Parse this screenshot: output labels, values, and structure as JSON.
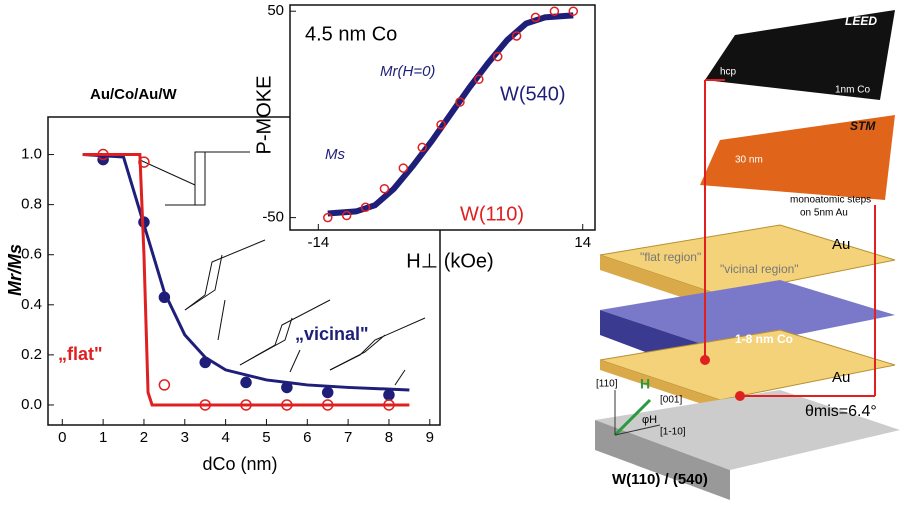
{
  "chart_data": [
    {
      "type": "line",
      "title": "Au/Co/Au/W",
      "x_label": "dCo (nm)",
      "y_label": "Mr/Ms",
      "xlim": [
        -0.35,
        9.25
      ],
      "ylim": [
        -0.08,
        1.15
      ],
      "xticks": [
        0,
        1,
        2,
        3,
        4,
        5,
        6,
        7,
        8,
        9
      ],
      "yticks": [
        {
          "value": 0,
          "label": "0.0"
        },
        {
          "value": 0.2,
          "label": "0.2"
        },
        {
          "value": 0.4,
          "label": "0.4"
        },
        {
          "value": 0.6,
          "label": "0.6"
        },
        {
          "value": 0.8,
          "label": "0.8"
        },
        {
          "value": 1,
          "label": "1.0"
        }
      ],
      "series": [
        {
          "name": "„vicinal\"",
          "color": "#1f1f7a",
          "marker": "filled",
          "x": [
            1,
            2,
            2.5,
            3.5,
            4.5,
            5.5,
            6.5,
            8
          ],
          "values": [
            0.98,
            0.73,
            0.43,
            0.17,
            0.09,
            0.07,
            0.05,
            0.04
          ]
        },
        {
          "name": "„flat\"",
          "color": "#e02020",
          "marker": "open",
          "x": [
            1,
            2,
            2.5,
            3.5,
            4.5,
            5.5,
            6.5,
            8
          ],
          "values": [
            1.0,
            0.97,
            0.08,
            0,
            0,
            0,
            0,
            0
          ]
        },
        {
          "color": "#1f1f7a",
          "x": [
            0.5,
            1.5,
            2,
            2.5,
            3,
            3.5,
            4,
            5,
            6,
            7,
            8.5
          ],
          "values": [
            1.0,
            0.99,
            0.72,
            0.45,
            0.28,
            0.19,
            0.14,
            0.1,
            0.08,
            0.07,
            0.06
          ]
        },
        {
          "color": "#e02020",
          "x": [
            0.5,
            1.9,
            2.0,
            2.1,
            2.2,
            8.5
          ],
          "values": [
            1.0,
            1.0,
            0.6,
            0.05,
            0.0,
            0.0
          ]
        }
      ]
    },
    {
      "type": "line",
      "x_label": "H⊥ (kOe)",
      "y_label": "P-MOKE",
      "annotation": "4.5 nm Co",
      "mr_label": "Mr(H=0)",
      "ms_label": "Ms",
      "xlim": [
        -17,
        15.3
      ],
      "ylim": [
        -56,
        53
      ],
      "xticks": [
        -14,
        14
      ],
      "yticks": [
        -50,
        50
      ],
      "series": [
        {
          "name": "W(540)",
          "color": "#1f1f7a",
          "marker": "none",
          "x": [
            -13,
            -10,
            -8,
            -6,
            -4,
            -2,
            0,
            2,
            4,
            6,
            8,
            10,
            13
          ],
          "values": [
            -48,
            -47,
            -44,
            -36,
            -25,
            -13,
            0,
            13,
            25,
            36,
            44,
            47,
            48
          ]
        },
        {
          "name": "W(110)",
          "color": "#e02020",
          "marker": "open",
          "x": [
            -13,
            -11,
            -9,
            -7,
            -5,
            -3,
            -1,
            1,
            3,
            5,
            7,
            9,
            11,
            13
          ],
          "values": [
            -50,
            -49,
            -45,
            -36,
            -26,
            -16,
            -5,
            6,
            17,
            28,
            38,
            47,
            50,
            50
          ]
        }
      ]
    }
  ],
  "diagram": {
    "leed": "LEED",
    "hcp": "hcp",
    "leed_caption": "1nm Co",
    "stm": "STM",
    "scale": "30 nm",
    "stm_caption1": "monoatomic steps",
    "stm_caption2": "on 5nm Au",
    "au_top": "Au",
    "flat_region": "\"flat region\"",
    "vicinal_region": "\"vicinal region\"",
    "co_layer": "1-8 nm Co",
    "au_bottom": "Au",
    "dir_110": "[110]",
    "field": "H",
    "dir_001": "[001]",
    "dir_1m10": "[1-10]",
    "phi": "φH",
    "theta": "θmis=6.4°",
    "substrate": "W(110) / (540)"
  }
}
